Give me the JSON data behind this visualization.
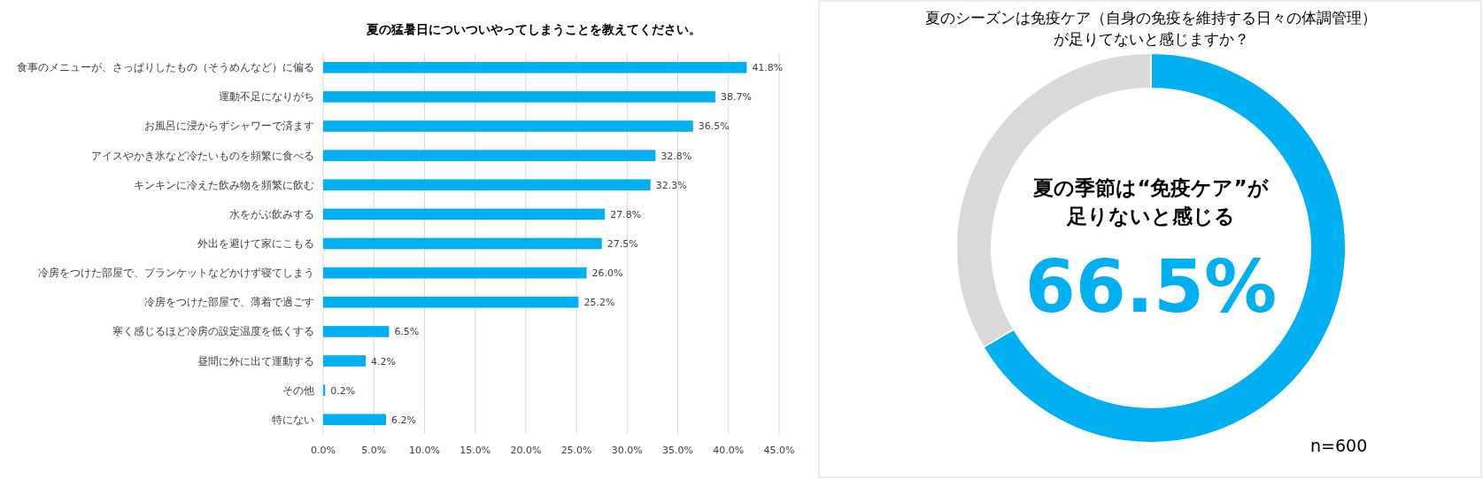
{
  "chart_data": [
    {
      "type": "bar",
      "orientation": "horizontal",
      "title": "夏の猛暑日についついやってしまうことを教えてください。",
      "categories": [
        "食事のメニューが、さっぱりしたもの（そうめんなど）に偏る",
        "運動不足になりがち",
        "お風呂に浸からずシャワーで済ます",
        "アイスやかき氷など冷たいものを頻繁に食べる",
        "キンキンに冷えた飲み物を頻繁に飲む",
        "水をがぶ飲みする",
        "外出を避けて家にこもる",
        "冷房をつけた部屋で、ブランケットなどかけず寝てしまう",
        "冷房をつけた部屋で、薄着で過ごす",
        "寒く感じるほど冷房の設定温度を低くする",
        "昼間に外に出て運動する",
        "その他",
        "特にない"
      ],
      "values": [
        41.8,
        38.7,
        36.5,
        32.8,
        32.3,
        27.8,
        27.5,
        26.0,
        25.2,
        6.5,
        4.2,
        0.2,
        6.2
      ],
      "value_labels": [
        "41.8%",
        "38.7%",
        "36.5%",
        "32.8%",
        "32.3%",
        "27.8%",
        "27.5%",
        "26.0%",
        "25.2%",
        "6.5%",
        "4.2%",
        "0.2%",
        "6.2%"
      ],
      "color": "#00b0f0",
      "xlim": [
        0,
        45
      ],
      "xticks": [
        {
          "value": 0,
          "label": "0.0%"
        },
        {
          "value": 5,
          "label": "5.0%"
        },
        {
          "value": 10,
          "label": "10.0%"
        },
        {
          "value": 15,
          "label": "15.0%"
        },
        {
          "value": 20,
          "label": "20.0%"
        },
        {
          "value": 25,
          "label": "25.0%"
        },
        {
          "value": 30,
          "label": "30.0%"
        },
        {
          "value": 35,
          "label": "35.0%"
        },
        {
          "value": 40,
          "label": "40.0%"
        },
        {
          "value": 45,
          "label": "45.0%"
        }
      ],
      "grid": "x"
    },
    {
      "type": "donut",
      "title": "夏のシーズンは免疫ケア（自身の免疫を維持する日々の体調管理）が足りてないと感じますか？",
      "categories": [
        null,
        null
      ],
      "values": [
        66.5,
        33.5
      ],
      "colors": [
        "#00b0f0",
        "#d9d9d9"
      ],
      "value_labels": [
        "66.5%",
        null
      ],
      "annotations": [
        "夏の季節は“免疫ケア”が足りないと感じる",
        "n=600"
      ]
    }
  ]
}
